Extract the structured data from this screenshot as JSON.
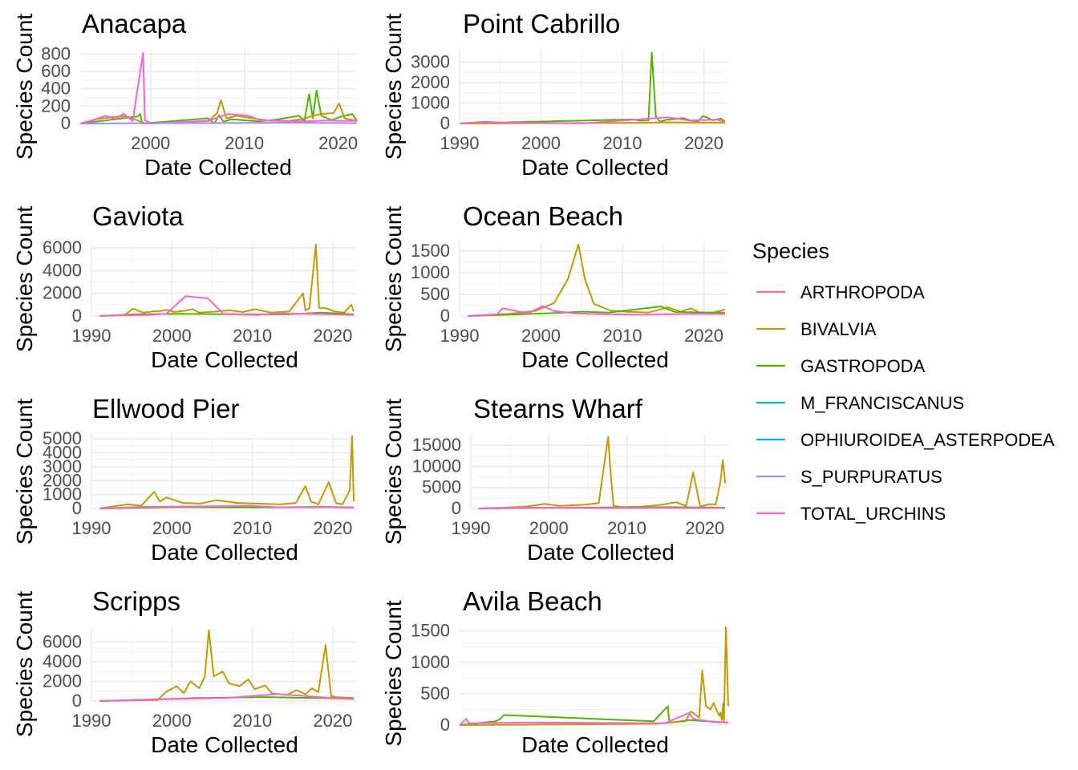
{
  "legend": {
    "title": "Species",
    "entries": [
      {
        "label": "ARTHROPODA",
        "color": "#F8766D"
      },
      {
        "label": "BIVALVIA",
        "color": "#C49A00"
      },
      {
        "label": "GASTROPODA",
        "color": "#53B400"
      },
      {
        "label": "M_FRANCISCANUS",
        "color": "#00C094"
      },
      {
        "label": "OPHIUROIDEA_ASTERPODEA",
        "color": "#00B6EB"
      },
      {
        "label": "S_PURPURATUS",
        "color": "#A58AFF"
      },
      {
        "label": "TOTAL_URCHINS",
        "color": "#FB61D7"
      }
    ],
    "position": "right"
  },
  "chart_data": [
    {
      "type": "line",
      "title": "Anacapa",
      "xlabel": "Date Collected",
      "ylabel": "Species Count",
      "xlim": [
        1992.5,
        2022
      ],
      "ylim": [
        0,
        850
      ],
      "xticks": [
        2000,
        2010,
        2020
      ],
      "yticks": [
        0,
        200,
        400,
        600,
        800
      ],
      "grid": true,
      "series": [
        {
          "name": "GASTROPODA",
          "x": [
            1992.5,
            1998.6,
            1998.9,
            1999.1,
            2006.1,
            2006.8,
            2007.3,
            2007.8,
            2008.6,
            2010.3,
            2011.5,
            2013.4,
            2015.8,
            2016.4,
            2016.9,
            2017.3,
            2017.7,
            2018.2,
            2019.3,
            2020.2,
            2021.5,
            2022
          ],
          "y": [
            0,
            80,
            110,
            0,
            60,
            0,
            95,
            20,
            50,
            35,
            25,
            45,
            90,
            30,
            340,
            60,
            380,
            90,
            40,
            75,
            110,
            30
          ]
        },
        {
          "name": "BIVALVIA",
          "x": [
            1992.5,
            1994.3,
            1995.6,
            1997.4,
            1999.5,
            2006.2,
            2007.1,
            2007.5,
            2008.1,
            2009.2,
            2010.8,
            2012.6,
            2014.7,
            2016.1,
            2018.1,
            2019.5,
            2020.1,
            2020.7,
            2022
          ],
          "y": [
            0,
            50,
            70,
            85,
            0,
            30,
            120,
            270,
            60,
            90,
            60,
            35,
            30,
            50,
            110,
            120,
            230,
            60,
            30
          ]
        },
        {
          "name": "TOTAL_URCHINS",
          "x": [
            1992.5,
            1993.9,
            1995.2,
            1996.3,
            1997.1,
            1998.1,
            1999.2,
            1999.4,
            2000.1,
            2006.1,
            2008.3,
            2009.4,
            2010.4,
            2011.7,
            2013.6,
            2016.6,
            2018.6,
            2020.7,
            2022
          ],
          "y": [
            0,
            40,
            90,
            50,
            115,
            30,
            815,
            40,
            0,
            30,
            110,
            100,
            90,
            40,
            30,
            25,
            35,
            30,
            30
          ]
        },
        {
          "name": "S_PURPURATUS",
          "x": [
            1992.5,
            1999.3,
            2005.5,
            2015.2,
            2022
          ],
          "y": [
            0,
            5,
            5,
            10,
            5
          ]
        }
      ]
    },
    {
      "type": "line",
      "title": "Point Cabrillo",
      "xlabel": "Date Collected",
      "ylabel": "Species Count",
      "xlim": [
        1990,
        2023
      ],
      "ylim": [
        0,
        3600
      ],
      "xticks": [
        1990,
        2000,
        2010,
        2020
      ],
      "yticks": [
        0,
        1000,
        2000,
        3000
      ],
      "grid": true,
      "series": [
        {
          "name": "GASTROPODA",
          "x": [
            1990,
            2011.3,
            2012.1,
            2013.2,
            2013.6,
            2014.1,
            2014.6,
            2015.4,
            2016.6,
            2017.4,
            2018.5,
            2019.3,
            2019.9,
            2021.1,
            2022.1,
            2022.6
          ],
          "y": [
            0,
            200,
            140,
            150,
            3450,
            350,
            90,
            180,
            220,
            270,
            140,
            110,
            370,
            160,
            240,
            90
          ]
        },
        {
          "name": "BIVALVIA",
          "x": [
            1990,
            2013.1,
            2015.1,
            2017.8,
            2022.6
          ],
          "y": [
            0,
            40,
            60,
            50,
            40
          ]
        },
        {
          "name": "TOTAL_URCHINS",
          "x": [
            1990,
            1993,
            1996,
            2005,
            2015.6,
            2018.2,
            2021.6,
            2022.6
          ],
          "y": [
            0,
            90,
            30,
            5,
            300,
            150,
            190,
            70
          ]
        }
      ]
    },
    {
      "type": "line",
      "title": "Gaviota",
      "xlabel": "Date Collected",
      "ylabel": "Species Count",
      "xlim": [
        1990,
        2023
      ],
      "ylim": [
        0,
        6500
      ],
      "xticks": [
        1990,
        2000,
        2010,
        2020
      ],
      "yticks": [
        0,
        2000,
        4000,
        6000
      ],
      "grid": true,
      "series": [
        {
          "name": "BIVALVIA",
          "x": [
            1991,
            1994.1,
            1995.2,
            1996.4,
            1997.7,
            1998.6,
            1999.4,
            2000.3,
            2001.5,
            2002.6,
            2003.4,
            2005.6,
            2007.2,
            2008.8,
            2010.3,
            2012.4,
            2014.6,
            2016.3,
            2016.6,
            2017.1,
            2017.9,
            2018.3,
            2019.1,
            2020.2,
            2021.4,
            2022.3,
            2022.6
          ],
          "y": [
            0,
            100,
            650,
            300,
            400,
            450,
            550,
            350,
            450,
            600,
            300,
            400,
            500,
            350,
            600,
            300,
            400,
            2000,
            500,
            700,
            6300,
            700,
            700,
            400,
            300,
            1000,
            400
          ]
        },
        {
          "name": "GASTROPODA",
          "x": [
            1991,
            1995.5,
            2001,
            2008.2,
            2014.1,
            2018.7,
            2022.6
          ],
          "y": [
            0,
            150,
            200,
            150,
            150,
            300,
            150
          ]
        },
        {
          "name": "TOTAL_URCHINS",
          "x": [
            1991,
            1993.4,
            1997.2,
            1999.3,
            2001.7,
            2004.5,
            2006.4,
            2010.6,
            2013.3,
            2015.6,
            2019.6,
            2022.6
          ],
          "y": [
            0,
            50,
            100,
            200,
            1750,
            1550,
            200,
            100,
            250,
            200,
            150,
            100
          ]
        }
      ]
    },
    {
      "type": "line",
      "title": "Ocean Beach",
      "xlabel": "Date Collected",
      "ylabel": "Species Count",
      "xlim": [
        1990,
        2023
      ],
      "ylim": [
        0,
        1700
      ],
      "xticks": [
        1990,
        2000,
        2010,
        2020
      ],
      "yticks": [
        0,
        500,
        1000,
        1500
      ],
      "grid": true,
      "series": [
        {
          "name": "BIVALVIA",
          "x": [
            1991,
            1996.1,
            1999.4,
            2001.6,
            2003.3,
            2004.6,
            2005.4,
            2006.5,
            2008.6,
            2010.7,
            2013.2,
            2015.6,
            2017.2,
            2018.4,
            2019.7,
            2021.1,
            2022.6
          ],
          "y": [
            0,
            50,
            120,
            300,
            850,
            1650,
            840,
            280,
            120,
            100,
            80,
            200,
            100,
            180,
            60,
            80,
            150
          ]
        },
        {
          "name": "GASTROPODA",
          "x": [
            1991,
            2000.4,
            2005.1,
            2008.3,
            2014.7,
            2016.5,
            2022.6
          ],
          "y": [
            0,
            60,
            100,
            80,
            220,
            90,
            80
          ]
        },
        {
          "name": "TOTAL_URCHINS",
          "x": [
            1991,
            1994.6,
            1995.3,
            1998.4,
            2000.2,
            2001.5,
            2004.1,
            2007.6,
            2012.5,
            2016.2,
            2019.6,
            2022.6
          ],
          "y": [
            0,
            40,
            180,
            60,
            230,
            120,
            60,
            40,
            30,
            40,
            50,
            40
          ]
        }
      ]
    },
    {
      "type": "line",
      "title": "Ellwood Pier",
      "xlabel": "Date Collected",
      "ylabel": "Species Count",
      "xlim": [
        1990,
        2023
      ],
      "ylim": [
        0,
        5300
      ],
      "xticks": [
        1990,
        2000,
        2010,
        2020
      ],
      "yticks": [
        0,
        1000,
        2000,
        3000,
        4000,
        5000
      ],
      "grid": true,
      "series": [
        {
          "name": "BIVALVIA",
          "x": [
            1991,
            1994.5,
            1996.2,
            1997.8,
            1998.5,
            1999.3,
            2001.4,
            2003.6,
            2005.5,
            2008.2,
            2010.6,
            2013.5,
            2015.4,
            2016.6,
            2017.3,
            2018.2,
            2019.5,
            2020.4,
            2021.2,
            2022.1,
            2022.4,
            2022.6
          ],
          "y": [
            0,
            300,
            200,
            1200,
            500,
            800,
            400,
            350,
            600,
            400,
            350,
            300,
            400,
            1600,
            500,
            300,
            1900,
            400,
            300,
            1300,
            5200,
            500
          ]
        },
        {
          "name": "GASTROPODA",
          "x": [
            1991,
            2000.6,
            2012.3,
            2018.6,
            2022.6
          ],
          "y": [
            0,
            100,
            80,
            120,
            80
          ]
        },
        {
          "name": "TOTAL_URCHINS",
          "x": [
            1991,
            1996.5,
            2004.2,
            2009.5,
            2013.6,
            2019.3,
            2022.6
          ],
          "y": [
            0,
            120,
            150,
            200,
            80,
            100,
            60
          ]
        }
      ]
    },
    {
      "type": "line",
      "title": "Stearns Wharf",
      "xlabel": "Date Collected",
      "ylabel": "Species Count",
      "xlim": [
        1990,
        2023
      ],
      "ylim": [
        0,
        17500
      ],
      "xticks": [
        1990,
        2000,
        2010,
        2020
      ],
      "yticks": [
        0,
        5000,
        10000,
        15000
      ],
      "grid": true,
      "series": [
        {
          "name": "BIVALVIA",
          "x": [
            1991,
            1995.6,
            1997.2,
            1999.5,
            2001.3,
            2004.6,
            2006.4,
            2007.6,
            2007.9,
            2008.3,
            2009.4,
            2011.6,
            2014.1,
            2016.3,
            2017.6,
            2018.5,
            2019.4,
            2020.6,
            2021.4,
            2022,
            2022.3,
            2022.6
          ],
          "y": [
            0,
            300,
            500,
            1100,
            600,
            900,
            1300,
            17000,
            9000,
            600,
            300,
            400,
            800,
            1500,
            600,
            8600,
            500,
            1000,
            1000,
            6500,
            11500,
            6000
          ]
        },
        {
          "name": "GASTROPODA",
          "x": [
            1991,
            2002.5,
            2015.4,
            2022.6
          ],
          "y": [
            0,
            200,
            300,
            200
          ]
        },
        {
          "name": "TOTAL_URCHINS",
          "x": [
            1991,
            1998.3,
            2006.6,
            2014.5,
            2022.6
          ],
          "y": [
            0,
            200,
            100,
            150,
            100
          ]
        }
      ]
    },
    {
      "type": "line",
      "title": "Scripps",
      "xlabel": "Date Collected",
      "ylabel": "Species Count",
      "xlim": [
        1990,
        2023
      ],
      "ylim": [
        0,
        7500
      ],
      "xticks": [
        1990,
        2000,
        2010,
        2020
      ],
      "yticks": [
        0,
        2000,
        4000,
        6000
      ],
      "grid": true,
      "series": [
        {
          "name": "BIVALVIA",
          "x": [
            1991,
            1998.2,
            1999.4,
            2000.6,
            2001.5,
            2002.3,
            2003.4,
            2004.1,
            2004.6,
            2005.2,
            2006.3,
            2007.1,
            2008.4,
            2009.5,
            2010.3,
            2011.6,
            2012.4,
            2014.2,
            2015.5,
            2016.6,
            2017.4,
            2018.2,
            2019.1,
            2019.8,
            2020.5,
            2022.6
          ],
          "y": [
            0,
            100,
            1000,
            1500,
            800,
            2000,
            1300,
            2500,
            7200,
            2500,
            3000,
            1800,
            1500,
            2200,
            1200,
            1600,
            800,
            600,
            1100,
            700,
            1300,
            900,
            5700,
            500,
            400,
            300
          ]
        },
        {
          "name": "GASTROPODA",
          "x": [
            1991,
            2003.2,
            2011.5,
            2018.7,
            2022.6
          ],
          "y": [
            0,
            300,
            400,
            300,
            200
          ]
        },
        {
          "name": "TOTAL_URCHINS",
          "x": [
            1991,
            2000.2,
            2006.5,
            2013.2,
            2018.4,
            2022.6
          ],
          "y": [
            0,
            200,
            300,
            700,
            400,
            200
          ]
        }
      ]
    },
    {
      "type": "line",
      "title": "Avila Beach",
      "xlabel": "Date Collected",
      "ylabel": "Species Count",
      "xlim": [
        0,
        100
      ],
      "ylim": [
        0,
        1650
      ],
      "xticks": [],
      "yticks": [
        0,
        500,
        1000,
        1500
      ],
      "grid": true,
      "series": [
        {
          "name": "GASTROPODA",
          "x": [
            0,
            13.5,
            15.2,
            16.5,
            72.2,
            77.5,
            77.9,
            78.4,
            85.5,
            100
          ],
          "y": [
            0,
            60,
            100,
            160,
            60,
            300,
            100,
            40,
            80,
            40
          ]
        },
        {
          "name": "BIVALVIA",
          "x": [
            0,
            72.5,
            84.1,
            86.1,
            89.2,
            89.6,
            90.3,
            91.7,
            93.4,
            94.5,
            96.6,
            97.1,
            97.6,
            98.1,
            98.4,
            99.1,
            100
          ],
          "y": [
            0,
            20,
            60,
            220,
            120,
            420,
            870,
            300,
            250,
            350,
            150,
            200,
            80,
            350,
            50,
            1560,
            300
          ]
        },
        {
          "name": "TOTAL_URCHINS",
          "x": [
            0,
            2.5,
            3.5,
            24.6,
            76.4,
            85.2,
            87.1,
            94.1,
            100
          ],
          "y": [
            0,
            100,
            30,
            40,
            30,
            190,
            100,
            50,
            40
          ]
        }
      ]
    }
  ]
}
